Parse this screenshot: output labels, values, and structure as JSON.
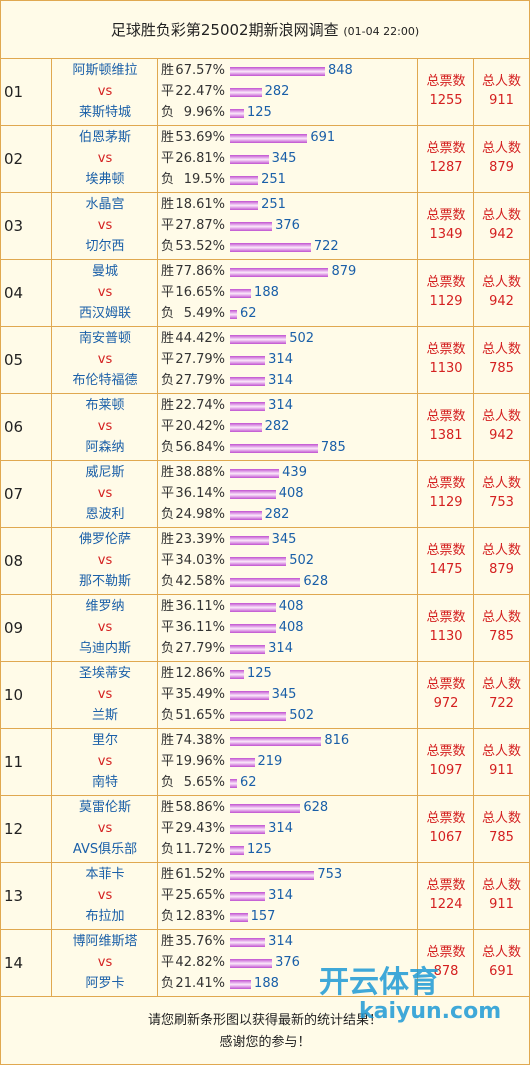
{
  "header": {
    "title": "足球胜负彩第25002期新浪网调查",
    "time": "(01-04 22:00)"
  },
  "labels": {
    "win": "胜",
    "draw": "平",
    "lose": "负",
    "vs": "vs",
    "total_votes": "总票数",
    "total_people": "总人数"
  },
  "matches": [
    {
      "no": "01",
      "home": "阿斯顿维拉",
      "away": "莱斯特城",
      "results": [
        {
          "pct": "67.57%",
          "count": 848
        },
        {
          "pct": "22.47%",
          "count": 282
        },
        {
          "pct": "9.96%",
          "count": 125
        }
      ],
      "votes": 1255,
      "people": 911
    },
    {
      "no": "02",
      "home": "伯恩茅斯",
      "away": "埃弗顿",
      "results": [
        {
          "pct": "53.69%",
          "count": 691
        },
        {
          "pct": "26.81%",
          "count": 345
        },
        {
          "pct": "19.5%",
          "count": 251
        }
      ],
      "votes": 1287,
      "people": 879
    },
    {
      "no": "03",
      "home": "水晶宫",
      "away": "切尔西",
      "results": [
        {
          "pct": "18.61%",
          "count": 251
        },
        {
          "pct": "27.87%",
          "count": 376
        },
        {
          "pct": "53.52%",
          "count": 722
        }
      ],
      "votes": 1349,
      "people": 942
    },
    {
      "no": "04",
      "home": "曼城",
      "away": "西汉姆联",
      "results": [
        {
          "pct": "77.86%",
          "count": 879
        },
        {
          "pct": "16.65%",
          "count": 188
        },
        {
          "pct": "5.49%",
          "count": 62
        }
      ],
      "votes": 1129,
      "people": 942
    },
    {
      "no": "05",
      "home": "南安普顿",
      "away": "布伦特福德",
      "results": [
        {
          "pct": "44.42%",
          "count": 502
        },
        {
          "pct": "27.79%",
          "count": 314
        },
        {
          "pct": "27.79%",
          "count": 314
        }
      ],
      "votes": 1130,
      "people": 785
    },
    {
      "no": "06",
      "home": "布莱顿",
      "away": "阿森纳",
      "results": [
        {
          "pct": "22.74%",
          "count": 314
        },
        {
          "pct": "20.42%",
          "count": 282
        },
        {
          "pct": "56.84%",
          "count": 785
        }
      ],
      "votes": 1381,
      "people": 942
    },
    {
      "no": "07",
      "home": "威尼斯",
      "away": "恩波利",
      "results": [
        {
          "pct": "38.88%",
          "count": 439
        },
        {
          "pct": "36.14%",
          "count": 408
        },
        {
          "pct": "24.98%",
          "count": 282
        }
      ],
      "votes": 1129,
      "people": 753
    },
    {
      "no": "08",
      "home": "佛罗伦萨",
      "away": "那不勒斯",
      "results": [
        {
          "pct": "23.39%",
          "count": 345
        },
        {
          "pct": "34.03%",
          "count": 502
        },
        {
          "pct": "42.58%",
          "count": 628
        }
      ],
      "votes": 1475,
      "people": 879
    },
    {
      "no": "09",
      "home": "维罗纳",
      "away": "乌迪内斯",
      "results": [
        {
          "pct": "36.11%",
          "count": 408
        },
        {
          "pct": "36.11%",
          "count": 408
        },
        {
          "pct": "27.79%",
          "count": 314
        }
      ],
      "votes": 1130,
      "people": 785
    },
    {
      "no": "10",
      "home": "圣埃蒂安",
      "away": "兰斯",
      "results": [
        {
          "pct": "12.86%",
          "count": 125
        },
        {
          "pct": "35.49%",
          "count": 345
        },
        {
          "pct": "51.65%",
          "count": 502
        }
      ],
      "votes": 972,
      "people": 722
    },
    {
      "no": "11",
      "home": "里尔",
      "away": "南特",
      "results": [
        {
          "pct": "74.38%",
          "count": 816
        },
        {
          "pct": "19.96%",
          "count": 219
        },
        {
          "pct": "5.65%",
          "count": 62
        }
      ],
      "votes": 1097,
      "people": 911
    },
    {
      "no": "12",
      "home": "莫雷伦斯",
      "away": "AVS俱乐部",
      "results": [
        {
          "pct": "58.86%",
          "count": 628
        },
        {
          "pct": "29.43%",
          "count": 314
        },
        {
          "pct": "11.72%",
          "count": 125
        }
      ],
      "votes": 1067,
      "people": 785
    },
    {
      "no": "13",
      "home": "本菲卡",
      "away": "布拉加",
      "results": [
        {
          "pct": "61.52%",
          "count": 753
        },
        {
          "pct": "25.65%",
          "count": 314
        },
        {
          "pct": "12.83%",
          "count": 157
        }
      ],
      "votes": 1224,
      "people": 911
    },
    {
      "no": "14",
      "home": "博阿维斯塔",
      "away": "阿罗卡",
      "results": [
        {
          "pct": "35.76%",
          "count": 314
        },
        {
          "pct": "42.82%",
          "count": 376
        },
        {
          "pct": "21.41%",
          "count": 188
        }
      ],
      "votes": 878,
      "people": 691
    }
  ],
  "footer": {
    "line1": "请您刷新条形图以获得最新的统计结果！",
    "line2": "感谢您的参与！"
  },
  "watermark": {
    "brand": "开云体育",
    "site": "kaiyun.com"
  }
}
